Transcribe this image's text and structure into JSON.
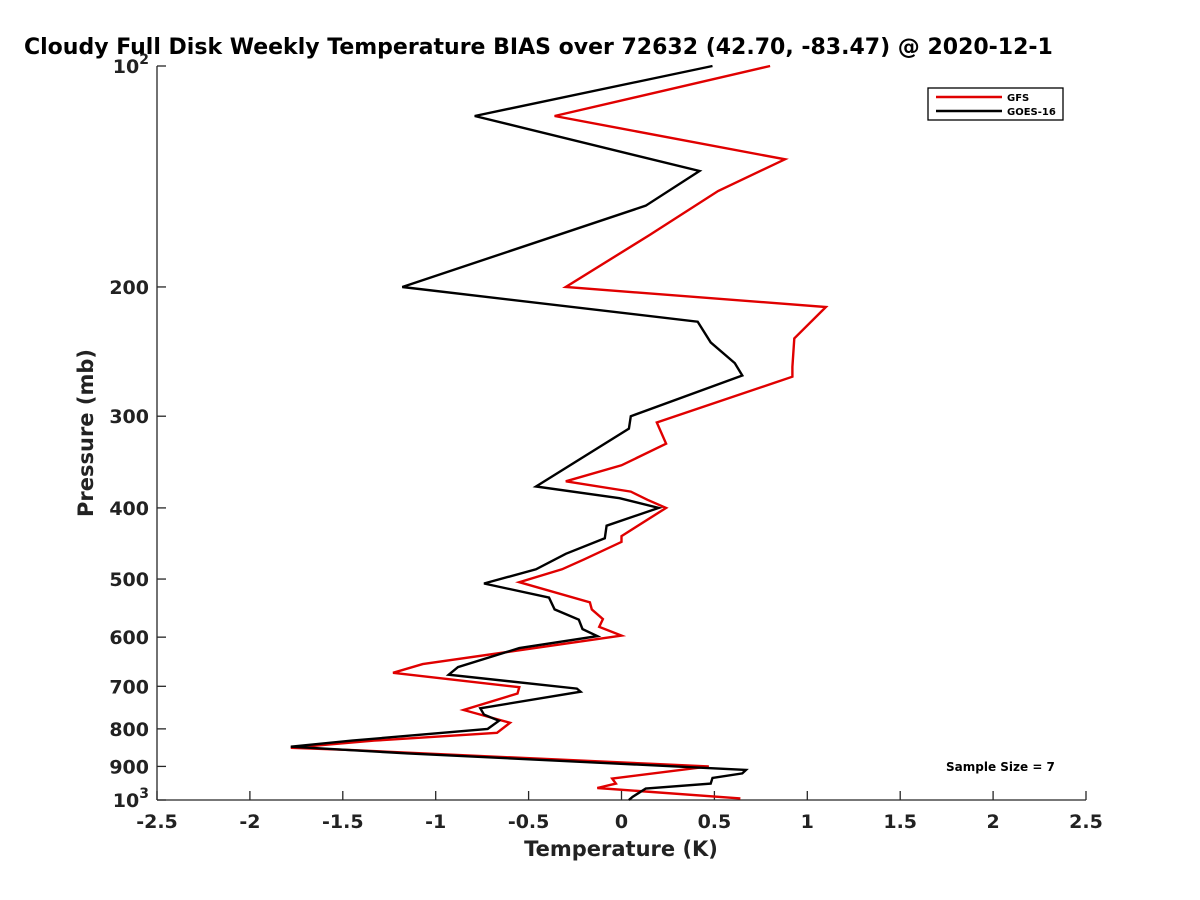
{
  "chart_data": {
    "type": "line",
    "title": "Cloudy Full Disk Weekly Temperature BIAS over 72632 (42.70, -83.47) @ 2020-12-1",
    "xlabel": "Temperature (K)",
    "ylabel": "Pressure (mb)",
    "xlim": [
      -2.5,
      2.5
    ],
    "ylim": [
      100,
      1000
    ],
    "y_scale": "log",
    "y_reversed": true,
    "grid": false,
    "legend_position": "top-right",
    "x_ticks": [
      {
        "value": -2.5,
        "label": "-2.5"
      },
      {
        "value": -2,
        "label": "-2"
      },
      {
        "value": -1.5,
        "label": "-1.5"
      },
      {
        "value": -1,
        "label": "-1"
      },
      {
        "value": -0.5,
        "label": "-0.5"
      },
      {
        "value": 0,
        "label": "0"
      },
      {
        "value": 0.5,
        "label": "0.5"
      },
      {
        "value": 1,
        "label": "1"
      },
      {
        "value": 1.5,
        "label": "1.5"
      },
      {
        "value": 2,
        "label": "2"
      },
      {
        "value": 2.5,
        "label": "2.5"
      }
    ],
    "y_ticks": [
      {
        "value": 100,
        "base": "10",
        "exp": "2"
      },
      {
        "value": 200,
        "label": "200"
      },
      {
        "value": 300,
        "label": "300"
      },
      {
        "value": 400,
        "label": "400"
      },
      {
        "value": 500,
        "label": "500"
      },
      {
        "value": 600,
        "label": "600"
      },
      {
        "value": 700,
        "label": "700"
      },
      {
        "value": 800,
        "label": "800"
      },
      {
        "value": 900,
        "label": "900"
      },
      {
        "value": 1000,
        "base": "10",
        "exp": "3"
      }
    ],
    "series": [
      {
        "name": "GFS",
        "color": "#e00000",
        "x": [
          0.8,
          -0.36,
          0.88,
          0.52,
          0.15,
          -0.3,
          1.1,
          0.93,
          0.92,
          0.92,
          0.19,
          0.24,
          0.0,
          -0.3,
          0.05,
          0.14,
          0.24,
          0.0,
          0.0,
          -0.2,
          -0.32,
          -0.55,
          -0.17,
          -0.16,
          -0.1,
          -0.12,
          0.0,
          -1.07,
          -1.23,
          -0.55,
          -0.56,
          -0.85,
          -0.6,
          -0.67,
          -1.33,
          -1.78,
          -1.45,
          0.47,
          -0.05,
          -0.03,
          -0.13,
          0.64
        ],
        "y": [
          100,
          117,
          134,
          148,
          170,
          200,
          213,
          235,
          257,
          265,
          306,
          327,
          350,
          368,
          380,
          390,
          400,
          437,
          445,
          470,
          485,
          505,
          538,
          550,
          567,
          581,
          597,
          653,
          671,
          702,
          716,
          754,
          785,
          810,
          830,
          849,
          855,
          900,
          935,
          950,
          963,
          995
        ]
      },
      {
        "name": "GOES-16",
        "color": "#000000",
        "x": [
          0.49,
          -0.79,
          0.42,
          0.13,
          -1.18,
          0.41,
          0.48,
          0.61,
          0.65,
          0.05,
          0.04,
          -0.46,
          -0.01,
          0.2,
          -0.08,
          -0.09,
          -0.3,
          -0.46,
          -0.74,
          -0.39,
          -0.36,
          -0.23,
          -0.21,
          -0.13,
          -0.55,
          -0.88,
          -0.93,
          -0.24,
          -0.22,
          -0.76,
          -0.74,
          -0.66,
          -0.72,
          -1.45,
          -1.78,
          -1.15,
          0.67,
          0.65,
          0.49,
          0.48,
          0.13,
          0.06,
          0.04
        ],
        "y": [
          100,
          117,
          139,
          155,
          200,
          223,
          238,
          254,
          264,
          300,
          312,
          374,
          388,
          400,
          423,
          440,
          462,
          485,
          507,
          530,
          550,
          568,
          585,
          598,
          621,
          659,
          675,
          705,
          712,
          750,
          765,
          780,
          800,
          830,
          846,
          864,
          910,
          920,
          933,
          950,
          965,
          990,
          1000
        ]
      }
    ],
    "annotations": [
      "Sample Size = 7"
    ]
  }
}
